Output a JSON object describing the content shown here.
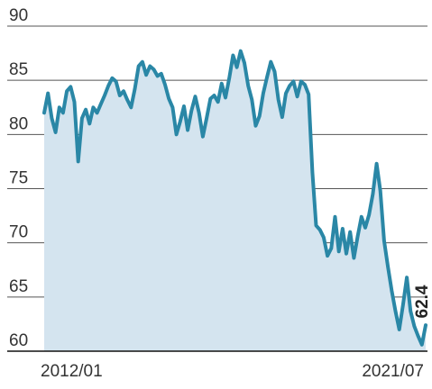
{
  "chart_data": {
    "type": "area",
    "title": "",
    "xlabel": "",
    "ylabel": "",
    "ylim": [
      60,
      90
    ],
    "yticks": [
      90,
      85,
      80,
      75,
      70,
      65,
      60
    ],
    "x_tick_labels": [
      "2012/01",
      "2021/07"
    ],
    "grid": true,
    "end_label": "62.4",
    "colors": {
      "line": "#2a87a6",
      "fill": "#d4e4ef",
      "grid": "#555555",
      "axis": "#111111"
    },
    "series": [
      {
        "values": [
          82.0,
          83.8,
          81.5,
          80.2,
          82.5,
          82.0,
          84.0,
          84.4,
          83.0,
          77.5,
          81.5,
          82.3,
          81.0,
          82.5,
          82.0,
          82.8,
          83.6,
          84.5,
          85.2,
          84.9,
          83.6,
          84.0,
          83.2,
          82.5,
          84.2,
          86.3,
          86.7,
          85.5,
          86.3,
          86.0,
          85.4,
          85.6,
          84.6,
          83.3,
          82.5,
          80.0,
          81.2,
          82.6,
          80.4,
          82.2,
          83.5,
          82.0,
          79.8,
          81.5,
          83.3,
          83.6,
          83.0,
          84.7,
          83.4,
          85.2,
          87.3,
          86.2,
          87.7,
          86.6,
          84.5,
          83.2,
          80.8,
          81.7,
          83.8,
          85.3,
          86.7,
          85.8,
          83.2,
          81.6,
          83.8,
          84.5,
          84.9,
          83.5,
          84.9,
          84.6,
          83.7,
          76.5,
          71.6,
          71.2,
          70.5,
          68.8,
          69.5,
          72.4,
          69.2,
          71.3,
          69.0,
          71.0,
          68.6,
          70.6,
          72.4,
          71.4,
          72.6,
          74.5,
          77.3,
          74.8,
          70.2,
          67.8,
          65.6,
          63.7,
          62.0,
          64.3,
          66.8,
          63.7,
          62.3,
          61.4,
          60.6,
          62.4
        ]
      }
    ]
  }
}
